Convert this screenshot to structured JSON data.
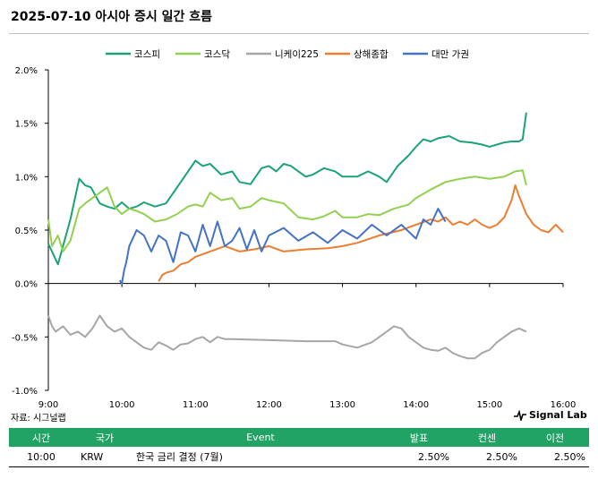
{
  "title": "2025-07-10 아시아 증시 일간 흐름",
  "source": "자료: 시그널랩",
  "brand": "Signal Lab",
  "table": {
    "headers": [
      "시간",
      "국가",
      "Event",
      "발표",
      "컨센",
      "이전"
    ],
    "rows": [
      {
        "time": "10:00",
        "country": "KRW",
        "event": "한국 금리 결정 (7월)",
        "actual": "2.50%",
        "consensus": "2.50%",
        "previous": "2.50%"
      }
    ]
  },
  "chart_data": {
    "type": "line",
    "title": "",
    "xlabel": "",
    "ylabel": "",
    "xlim": [
      9,
      16
    ],
    "ylim": [
      -1.0,
      2.0
    ],
    "x_ticks": [
      "9:00",
      "10:00",
      "11:00",
      "12:00",
      "13:00",
      "14:00",
      "15:00",
      "16:00"
    ],
    "y_ticks": [
      "2.0%",
      "1.5%",
      "1.0%",
      "0.5%",
      "0.0%",
      "-0.5%",
      "-1.0%"
    ],
    "grid": false,
    "legend_position": "top",
    "colors": {
      "kospi": "#1aa373",
      "kosdaq": "#92d050",
      "nikkei": "#a6a6a6",
      "shanghai": "#ed7d31",
      "taiex": "#4472c4",
      "accent": "#21a366"
    },
    "series": [
      {
        "name": "코스피",
        "color": "#1aa373",
        "x": [
          9.0,
          9.05,
          9.13,
          9.2,
          9.3,
          9.42,
          9.5,
          9.58,
          9.7,
          9.8,
          9.9,
          10.0,
          10.1,
          10.2,
          10.3,
          10.45,
          10.6,
          10.75,
          10.9,
          11.0,
          11.1,
          11.2,
          11.35,
          11.5,
          11.6,
          11.75,
          11.9,
          12.0,
          12.1,
          12.2,
          12.3,
          12.4,
          12.5,
          12.6,
          12.75,
          12.9,
          13.0,
          13.2,
          13.35,
          13.5,
          13.6,
          13.75,
          13.9,
          14.0,
          14.1,
          14.2,
          14.3,
          14.45,
          14.6,
          14.75,
          14.9,
          15.0,
          15.1,
          15.2,
          15.3,
          15.4,
          15.45,
          15.5
        ],
        "y": [
          0.37,
          0.3,
          0.18,
          0.35,
          0.6,
          0.98,
          0.92,
          0.9,
          0.75,
          0.72,
          0.7,
          0.76,
          0.7,
          0.72,
          0.76,
          0.72,
          0.75,
          0.9,
          1.05,
          1.15,
          1.1,
          1.12,
          1.02,
          1.05,
          0.95,
          0.93,
          1.08,
          1.1,
          1.05,
          1.12,
          1.1,
          1.05,
          1.0,
          1.02,
          1.08,
          1.05,
          1.0,
          1.0,
          1.05,
          1.0,
          0.95,
          1.1,
          1.2,
          1.28,
          1.35,
          1.33,
          1.36,
          1.38,
          1.33,
          1.32,
          1.3,
          1.28,
          1.3,
          1.32,
          1.33,
          1.33,
          1.35,
          1.6
        ]
      },
      {
        "name": "코스닥",
        "color": "#92d050",
        "x": [
          9.0,
          9.05,
          9.13,
          9.2,
          9.3,
          9.42,
          9.5,
          9.6,
          9.7,
          9.8,
          9.9,
          10.0,
          10.1,
          10.2,
          10.3,
          10.45,
          10.6,
          10.75,
          10.9,
          11.0,
          11.1,
          11.2,
          11.35,
          11.5,
          11.6,
          11.75,
          11.9,
          12.0,
          12.2,
          12.4,
          12.6,
          12.75,
          12.9,
          13.0,
          13.2,
          13.35,
          13.5,
          13.7,
          13.9,
          14.0,
          14.2,
          14.4,
          14.6,
          14.8,
          15.0,
          15.2,
          15.35,
          15.45,
          15.5
        ],
        "y": [
          0.6,
          0.35,
          0.45,
          0.3,
          0.4,
          0.7,
          0.75,
          0.8,
          0.85,
          0.9,
          0.72,
          0.65,
          0.7,
          0.68,
          0.65,
          0.58,
          0.6,
          0.65,
          0.72,
          0.74,
          0.72,
          0.85,
          0.78,
          0.8,
          0.7,
          0.72,
          0.8,
          0.78,
          0.75,
          0.62,
          0.6,
          0.63,
          0.68,
          0.62,
          0.62,
          0.65,
          0.64,
          0.7,
          0.74,
          0.8,
          0.88,
          0.95,
          0.98,
          1.0,
          0.98,
          1.0,
          1.05,
          1.06,
          0.92
        ]
      },
      {
        "name": "니케이225",
        "color": "#a6a6a6",
        "x": [
          9.0,
          9.05,
          9.1,
          9.2,
          9.3,
          9.4,
          9.5,
          9.6,
          9.7,
          9.8,
          9.9,
          10.0,
          10.1,
          10.2,
          10.3,
          10.4,
          10.5,
          10.6,
          10.7,
          10.8,
          10.9,
          11.0,
          11.1,
          11.2,
          11.3,
          11.4,
          11.5,
          12.0,
          12.5,
          12.9,
          13.0,
          13.2,
          13.4,
          13.6,
          13.7,
          13.8,
          13.9,
          14.0,
          14.1,
          14.2,
          14.3,
          14.4,
          14.5,
          14.6,
          14.7,
          14.8,
          14.9,
          15.0,
          15.1,
          15.2,
          15.3,
          15.4,
          15.5
        ],
        "y": [
          -0.3,
          -0.4,
          -0.45,
          -0.4,
          -0.48,
          -0.45,
          -0.5,
          -0.42,
          -0.3,
          -0.4,
          -0.45,
          -0.42,
          -0.5,
          -0.55,
          -0.6,
          -0.62,
          -0.55,
          -0.58,
          -0.62,
          -0.57,
          -0.56,
          -0.52,
          -0.5,
          -0.55,
          -0.5,
          -0.52,
          -0.52,
          -0.53,
          -0.54,
          -0.54,
          -0.57,
          -0.6,
          -0.55,
          -0.45,
          -0.4,
          -0.42,
          -0.5,
          -0.55,
          -0.6,
          -0.62,
          -0.63,
          -0.6,
          -0.65,
          -0.68,
          -0.7,
          -0.7,
          -0.65,
          -0.62,
          -0.55,
          -0.5,
          -0.45,
          -0.42,
          -0.45
        ]
      },
      {
        "name": "상해종합",
        "color": "#ed7d31",
        "x": [
          10.5,
          10.55,
          10.6,
          10.7,
          10.8,
          10.9,
          11.0,
          11.2,
          11.4,
          11.6,
          11.8,
          12.0,
          12.2,
          12.5,
          12.8,
          13.0,
          13.2,
          13.5,
          13.8,
          14.0,
          14.2,
          14.3,
          14.4,
          14.5,
          14.6,
          14.7,
          14.8,
          14.9,
          15.0,
          15.1,
          15.2,
          15.3,
          15.35,
          15.4,
          15.5,
          15.6,
          15.7,
          15.8,
          15.9,
          16.0
        ],
        "y": [
          0.02,
          0.08,
          0.1,
          0.12,
          0.18,
          0.2,
          0.25,
          0.3,
          0.35,
          0.3,
          0.32,
          0.35,
          0.3,
          0.32,
          0.33,
          0.35,
          0.38,
          0.45,
          0.5,
          0.55,
          0.6,
          0.58,
          0.62,
          0.55,
          0.58,
          0.55,
          0.6,
          0.55,
          0.52,
          0.55,
          0.62,
          0.78,
          0.92,
          0.82,
          0.65,
          0.55,
          0.5,
          0.48,
          0.55,
          0.48
        ]
      },
      {
        "name": "대만 가권",
        "color": "#4472c4",
        "x": [
          9.97,
          10.0,
          10.03,
          10.06,
          10.1,
          10.2,
          10.3,
          10.4,
          10.5,
          10.6,
          10.7,
          10.8,
          10.9,
          11.0,
          11.1,
          11.2,
          11.3,
          11.4,
          11.5,
          11.6,
          11.7,
          11.8,
          11.9,
          12.0,
          12.2,
          12.4,
          12.6,
          12.8,
          13.0,
          13.2,
          13.4,
          13.6,
          13.8,
          14.0,
          14.1,
          14.2,
          14.3,
          14.4
        ],
        "y": [
          0.03,
          0.0,
          0.12,
          0.2,
          0.35,
          0.5,
          0.45,
          0.3,
          0.45,
          0.4,
          0.2,
          0.48,
          0.45,
          0.3,
          0.55,
          0.35,
          0.58,
          0.35,
          0.4,
          0.52,
          0.32,
          0.5,
          0.3,
          0.45,
          0.52,
          0.4,
          0.48,
          0.38,
          0.5,
          0.42,
          0.55,
          0.45,
          0.55,
          0.42,
          0.6,
          0.55,
          0.7,
          0.58
        ]
      }
    ]
  }
}
